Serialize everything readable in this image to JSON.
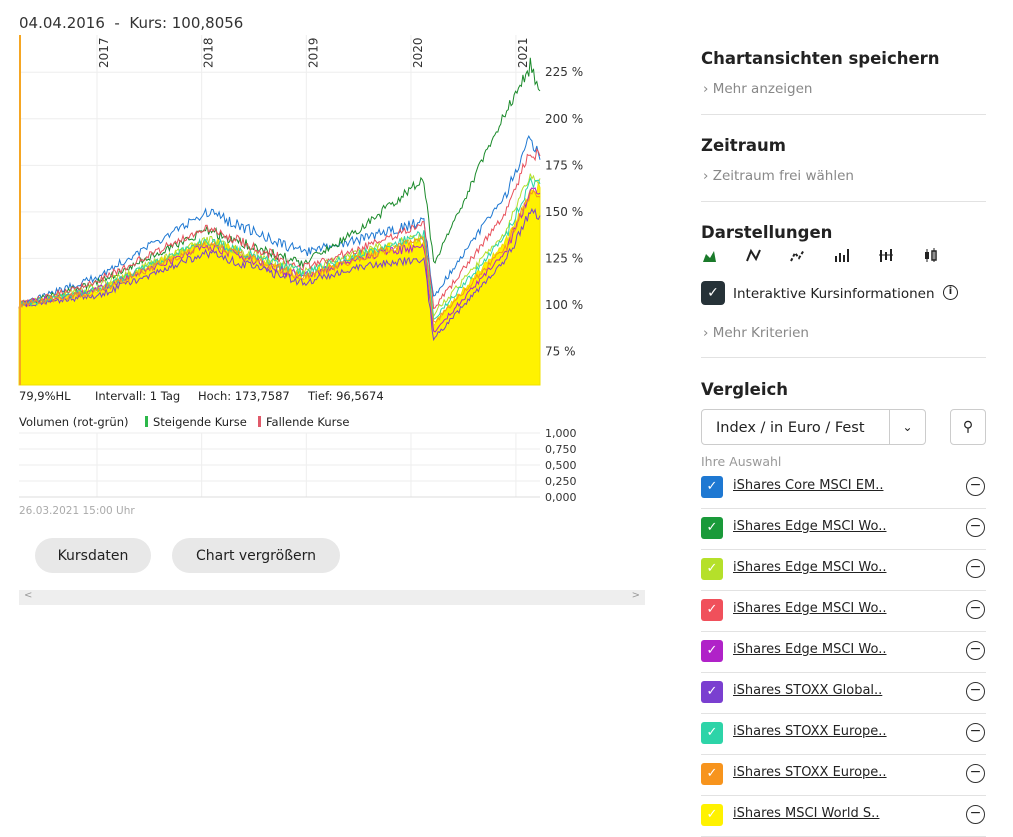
{
  "header": {
    "title": "04.04.2016  -  Kurs: 100,8056"
  },
  "chart_data": {
    "type": "line",
    "x_ticks": [
      "2017",
      "2018",
      "2019",
      "2020",
      "2021"
    ],
    "y_ticks": [
      "75 %",
      "100 %",
      "125 %",
      "150 %",
      "175 %",
      "200 %",
      "225 %"
    ],
    "ylim": [
      57,
      245
    ],
    "xlim": [
      "2016-04-04",
      "2021-03-26"
    ],
    "grid": true,
    "dates": [
      "2016-04-04",
      "2017-01-01",
      "2018-01-20",
      "2018-12-20",
      "2019-07-01",
      "2020-02-15",
      "2020-03-20",
      "2020-11-30",
      "2021-02-20",
      "2021-03-26"
    ],
    "series": [
      {
        "name": "iShares MSCI World S..",
        "color": "#fff200",
        "style": "area",
        "values": [
          100,
          108,
          135,
          115,
          127,
          135,
          90,
          135,
          160,
          163
        ]
      },
      {
        "name": "iShares Core MSCI EM..",
        "color": "#1e78d2",
        "values": [
          100,
          115,
          150,
          128,
          135,
          145,
          105,
          160,
          190,
          178
        ]
      },
      {
        "name": "iShares Edge MSCI Wo..",
        "color": "#1a8a2a",
        "values": [
          100,
          112,
          140,
          122,
          140,
          168,
          122,
          205,
          228,
          215
        ]
      },
      {
        "name": "iShares Edge MSCI Wo..",
        "color": "#b5e02a",
        "values": [
          100,
          110,
          135,
          118,
          128,
          137,
          95,
          140,
          170,
          168
        ]
      },
      {
        "name": "iShares Edge MSCI Wo..",
        "color": "#e8505b",
        "values": [
          100,
          113,
          142,
          120,
          130,
          143,
          98,
          150,
          183,
          180
        ]
      },
      {
        "name": "iShares Edge MSCI Wo..",
        "color": "#b022c8",
        "values": [
          100,
          108,
          132,
          115,
          125,
          132,
          85,
          130,
          160,
          160
        ]
      },
      {
        "name": "iShares STOXX Global..",
        "color": "#7a3fd0",
        "values": [
          100,
          105,
          128,
          112,
          120,
          125,
          82,
          125,
          150,
          148
        ]
      },
      {
        "name": "iShares STOXX Europe..",
        "color": "#2dd4a8",
        "values": [
          100,
          108,
          135,
          117,
          127,
          138,
          92,
          138,
          165,
          165
        ]
      },
      {
        "name": "iShares STOXX Europe..",
        "color": "#f7941d",
        "values": [
          100,
          107,
          133,
          115,
          125,
          135,
          90,
          132,
          160,
          158
        ]
      }
    ],
    "volume": {
      "y_ticks": [
        "1,000",
        "0,750",
        "0,500",
        "0,250",
        "0,000"
      ]
    }
  },
  "info": {
    "hl": "79,9%HL",
    "interval": "Intervall: 1 Tag",
    "hoch": "Hoch: 173,7587",
    "tief": "Tief: 96,5674"
  },
  "volume": {
    "label": "Volumen (rot-grün)",
    "up": "Steigende Kurse",
    "down": "Fallende Kurse",
    "up_color": "#2db84a",
    "down_color": "#e05a6a"
  },
  "timestamp": "26.03.2021 15:00 Uhr",
  "buttons": {
    "kursdaten": "Kursdaten",
    "enlarge": "Chart vergrößern"
  },
  "scroll": {
    "left": "<",
    "right": ">"
  },
  "side": {
    "save_title": "Chartansichten speichern",
    "save_more": "Mehr anzeigen",
    "period_title": "Zeitraum",
    "period_link": "Zeitraum frei wählen",
    "display_title": "Darstellungen",
    "display_icons": [
      "area-chart-icon",
      "line-chart-icon",
      "dotted-line-icon",
      "bar-chart-icon",
      "ohlc-icon",
      "candlestick-icon"
    ],
    "interactive_label": "Interaktive Kursinformationen",
    "interactive_checked": true,
    "more_criteria": "Mehr Kriterien",
    "compare_title": "Vergleich",
    "compare_select": "Index / in Euro / Fest",
    "selection_label": "Ihre Auswahl",
    "items": [
      {
        "name": "iShares Core MSCI EM..",
        "color": "#1e78d2"
      },
      {
        "name": "iShares Edge MSCI Wo..",
        "color": "#1a9a3a"
      },
      {
        "name": "iShares Edge MSCI Wo..",
        "color": "#b5e02a"
      },
      {
        "name": "iShares Edge MSCI Wo..",
        "color": "#f0505b"
      },
      {
        "name": "iShares Edge MSCI Wo..",
        "color": "#b022c8"
      },
      {
        "name": "iShares STOXX Global..",
        "color": "#7a3fd0"
      },
      {
        "name": "iShares STOXX Europe..",
        "color": "#2dd4a8"
      },
      {
        "name": "iShares STOXX Europe..",
        "color": "#f7941d"
      },
      {
        "name": "iShares MSCI World S..",
        "color": "#fff200"
      }
    ]
  }
}
